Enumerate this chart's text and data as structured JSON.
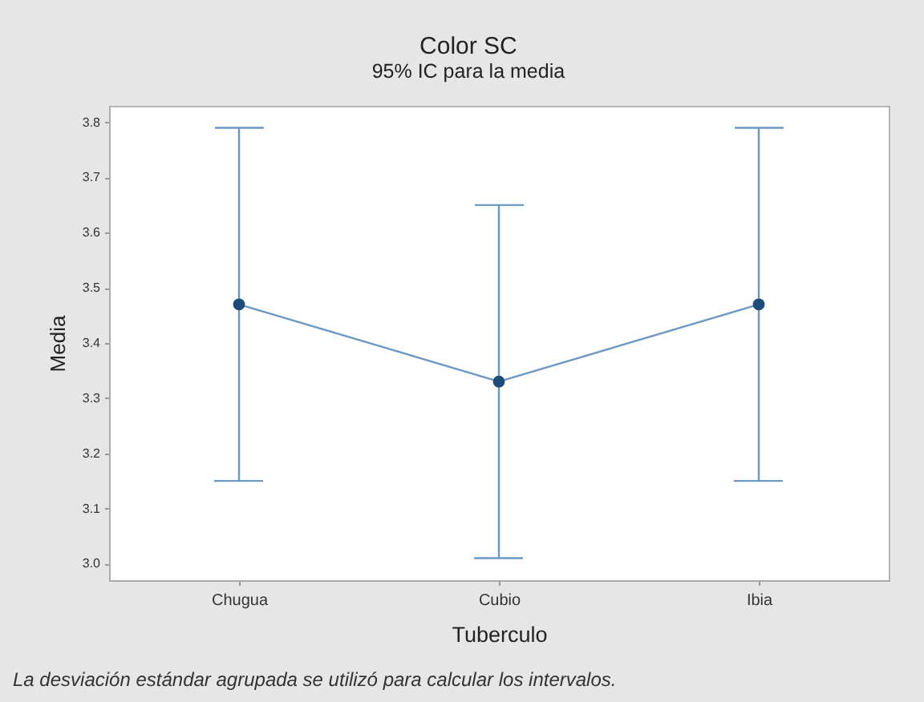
{
  "chart_data": {
    "type": "line",
    "title": "Color SC",
    "subtitle": "95% IC para la media",
    "xlabel": "Tuberculo",
    "ylabel": "Media",
    "annotations": [
      "La desviación estándar agrupada se utilizó para calcular los intervalos."
    ],
    "categories": [
      "Chugua",
      "Cubio",
      "Ibia"
    ],
    "values": [
      3.47,
      3.33,
      3.47
    ],
    "errors": [
      0.32,
      0.32,
      0.32
    ],
    "color": "#6b97c4",
    "colors": [
      "#1d4b7a",
      "#1d4b7a",
      "#1d4b7a"
    ],
    "marker": "circle",
    "line_style": "solid",
    "ylim": [
      2.97,
      3.83
    ],
    "yticks": [
      {
        "value": 3,
        "label": "3.0"
      },
      3.1,
      3.2,
      3.3,
      3.4,
      3.5,
      3.6,
      3.7,
      3.8
    ],
    "grid": false
  }
}
